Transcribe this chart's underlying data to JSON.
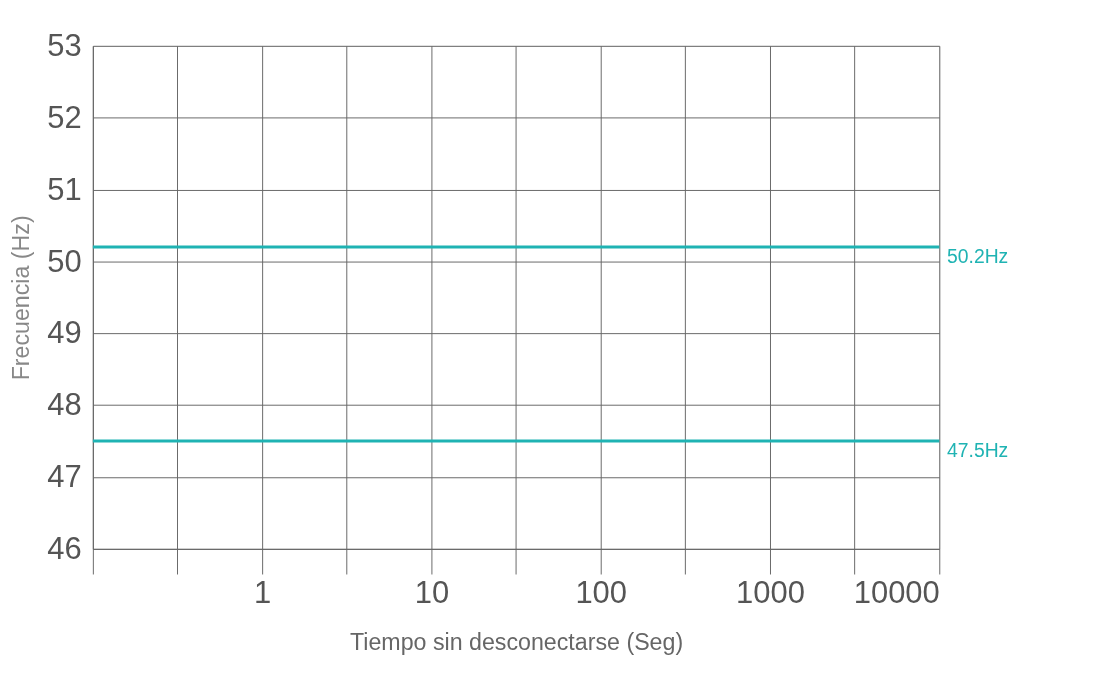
{
  "chart_data": {
    "type": "line",
    "xlabel": "Tiempo sin desconectarse (Seg)",
    "ylabel": "Frecuencia (Hz)",
    "log": "x",
    "xlim": [
      0.1,
      10000
    ],
    "xticks": [
      {
        "value": 0.1,
        "label": null
      },
      {
        "value": 0.316,
        "label": null
      },
      1,
      {
        "value": 3.16,
        "label": null
      },
      10,
      {
        "value": 31.6,
        "label": null
      },
      100,
      {
        "value": 316,
        "label": null
      },
      1000,
      {
        "value": 3162,
        "label": null
      },
      10000
    ],
    "ylim": [
      46,
      53
    ],
    "yticks": [
      46,
      47,
      48,
      49,
      50,
      51,
      52,
      53
    ],
    "grid": true,
    "ref_lines": [
      {
        "axis": "y",
        "value": 50.2,
        "label": "50.2Hz",
        "color": "#1fb3b3"
      },
      {
        "axis": "y",
        "value": 47.5,
        "label": "47.5Hz",
        "color": "#1fb3b3"
      }
    ]
  }
}
